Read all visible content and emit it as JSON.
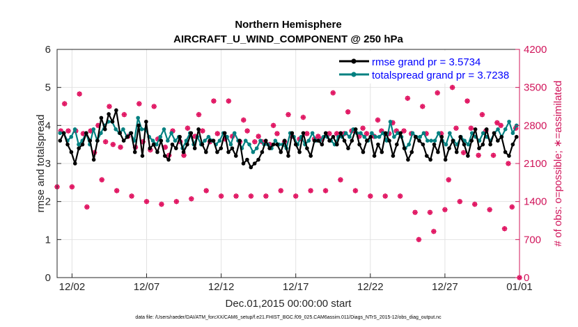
{
  "chart_data": {
    "type": "line",
    "title": "Northern Hemisphere",
    "subtitle": "AIRCRAFT_U_WIND_COMPONENT @ 250 hPa",
    "xlabel": "Dec.01,2015 00:00:00 start",
    "ylabel": "rmse and totalspread",
    "y2label": "# of obs: o=possible; ∗=assimilated",
    "footnote": "data file: /Users/raeder/DAI/ATM_forcXX/CAM6_setup/f.e21.FHIST_BGC.f09_025.CAM6assim.011/Diags_NTrS_2015-12/obs_diag_output.nc",
    "xlim": [
      0,
      31
    ],
    "ylim": [
      0,
      6
    ],
    "y2lim": [
      0,
      4200
    ],
    "x_ticks": [
      1,
      6,
      11,
      16,
      21,
      26,
      31
    ],
    "x_tick_labels": [
      "12/02",
      "12/07",
      "12/12",
      "12/17",
      "12/22",
      "12/27",
      "01/01"
    ],
    "y_ticks": [
      0,
      1,
      2,
      3,
      4,
      5,
      6
    ],
    "y2_ticks": [
      0,
      700,
      1400,
      2100,
      2800,
      3500,
      4200
    ],
    "legend_position": "top-right",
    "colors": {
      "rmse": "#000000",
      "spread": "#008080",
      "obs": "#e0115f",
      "y2axis": "#d0145a",
      "grid": "#e2e2e2",
      "legend_text": "#0000ff"
    },
    "series": [
      {
        "name": "rmse",
        "legend": "rmse grand pr = 3.5734",
        "values": [
          3.6,
          3.8,
          3.5,
          3.3,
          3.0,
          3.4,
          3.5,
          3.8,
          3.6,
          3.1,
          3.6,
          4.2,
          3.9,
          4.3,
          4.1,
          4.4,
          3.8,
          3.6,
          3.7,
          3.8,
          3.3,
          4.0,
          3.2,
          4.1,
          3.4,
          3.5,
          3.3,
          3.6,
          3.2,
          3.1,
          3.5,
          3.4,
          3.7,
          3.3,
          3.5,
          3.8,
          3.4,
          3.9,
          3.5,
          3.3,
          3.6,
          3.6,
          3.3,
          3.4,
          3.8,
          3.3,
          3.4,
          3.2,
          3.6,
          3.0,
          3.1,
          2.9,
          3.0,
          3.1,
          3.3,
          3.6,
          3.4,
          3.5,
          3.5,
          3.3,
          3.6,
          3.2,
          3.8,
          3.5,
          3.3,
          3.8,
          3.4,
          3.2,
          3.6,
          3.6,
          3.5,
          3.8,
          3.6,
          3.7,
          3.5,
          3.8,
          3.6,
          3.4,
          3.6,
          3.9,
          3.5,
          3.3,
          3.6,
          3.7,
          3.2,
          3.5,
          3.3,
          3.8,
          3.6,
          3.2,
          3.5,
          3.8,
          3.4,
          3.1,
          3.3,
          3.7,
          3.6,
          3.5,
          3.2,
          3.1,
          3.5,
          3.3,
          3.7,
          3.1,
          3.4,
          3.6,
          3.3,
          3.7,
          3.5,
          3.2,
          3.6,
          3.9,
          3.4,
          3.5,
          3.9,
          3.5,
          3.8,
          3.6,
          3.7,
          3.3,
          3.2,
          3.5,
          3.7
        ]
      },
      {
        "name": "totalspread",
        "legend": "totalspread grand pr = 3.7238",
        "values": [
          3.8,
          3.8,
          3.6,
          3.7,
          3.9,
          3.5,
          3.6,
          3.8,
          3.5,
          3.9,
          3.6,
          3.8,
          4.0,
          4.1,
          4.1,
          3.9,
          3.8,
          3.9,
          3.7,
          3.8,
          3.6,
          4.2,
          3.9,
          3.9,
          3.7,
          3.6,
          3.5,
          3.7,
          3.9,
          3.6,
          3.8,
          3.6,
          3.7,
          3.4,
          3.6,
          3.8,
          3.5,
          3.7,
          3.5,
          3.6,
          3.7,
          3.6,
          3.5,
          3.6,
          3.8,
          3.7,
          3.5,
          3.8,
          3.6,
          3.4,
          3.6,
          3.5,
          3.3,
          3.4,
          3.6,
          3.5,
          3.5,
          3.4,
          3.6,
          3.5,
          3.5,
          3.4,
          3.8,
          3.7,
          3.5,
          3.7,
          3.5,
          3.6,
          3.8,
          3.6,
          3.6,
          3.7,
          3.7,
          3.6,
          3.5,
          3.7,
          3.7,
          3.8,
          3.7,
          3.9,
          3.8,
          3.8,
          3.7,
          3.6,
          3.8,
          3.7,
          3.7,
          3.8,
          3.6,
          4.1,
          3.7,
          3.8,
          3.7,
          3.4,
          3.5,
          3.8,
          3.7,
          3.7,
          3.8,
          3.6,
          3.6,
          3.6,
          3.8,
          3.6,
          3.5,
          3.8,
          3.6,
          3.5,
          3.7,
          3.6,
          3.5,
          3.8,
          3.7,
          3.6,
          3.8,
          3.7,
          3.6,
          3.8,
          3.9,
          3.7,
          3.9,
          4.1,
          3.8,
          4.0
        ]
      }
    ],
    "obs": {
      "possible_label": "o=possible",
      "assimilated_label": "∗=assimilated",
      "x": [
        0,
        0.25,
        0.5,
        0.75,
        1,
        1.25,
        1.5,
        1.75,
        2,
        2.25,
        2.5,
        2.75,
        3,
        3.25,
        3.5,
        3.75,
        4,
        4.25,
        4.5,
        4.75,
        5,
        5.25,
        5.5,
        5.75,
        6,
        6.25,
        6.5,
        6.75,
        7,
        7.25,
        7.5,
        7.75,
        8,
        8.25,
        8.5,
        8.75,
        9,
        9.25,
        9.5,
        9.75,
        10,
        10.25,
        10.5,
        10.75,
        11,
        11.25,
        11.5,
        11.75,
        12,
        12.25,
        12.5,
        12.75,
        13,
        13.25,
        13.5,
        13.75,
        14,
        14.25,
        14.5,
        14.75,
        15,
        15.25,
        15.5,
        15.75,
        16,
        16.25,
        16.5,
        16.75,
        17,
        17.25,
        17.5,
        17.75,
        18,
        18.25,
        18.5,
        18.75,
        19,
        19.25,
        19.5,
        19.75,
        20,
        20.25,
        20.5,
        20.75,
        21,
        21.25,
        21.5,
        21.75,
        22,
        22.25,
        22.5,
        22.75,
        23,
        23.25,
        23.5,
        23.75,
        24,
        24.25,
        24.5,
        24.75,
        25,
        25.25,
        25.5,
        25.75,
        26,
        26.25,
        26.5,
        26.75,
        27,
        27.25,
        27.5,
        27.75,
        28,
        28.25,
        28.5,
        28.75,
        29,
        29.25,
        29.5,
        29.75,
        30,
        30.25,
        30.5,
        30.75,
        31
      ],
      "possible": [
        1670,
        2700,
        3200,
        2700,
        1670,
        2700,
        3380,
        2650,
        1300,
        2700,
        2300,
        2800,
        1800,
        2500,
        3150,
        2450,
        1600,
        2400,
        3000,
        2600,
        1500,
        2400,
        3200,
        2500,
        1400,
        2350,
        3150,
        2550,
        1350,
        2400,
        2250,
        2700,
        1400,
        2500,
        2250,
        2750,
        1450,
        2600,
        3000,
        2700,
        1600,
        2500,
        3250,
        2650,
        1500,
        2550,
        3250,
        2600,
        1500,
        2500,
        2900,
        2700,
        1500,
        2500,
        2600,
        2500,
        1500,
        2450,
        2800,
        2650,
        1600,
        2500,
        3000,
        2600,
        1500,
        2550,
        2950,
        2650,
        1600,
        2550,
        2600,
        2550,
        1600,
        2650,
        3400,
        2650,
        1800,
        2650,
        3050,
        2700,
        1600,
        2600,
        2750,
        2650,
        1500,
        2600,
        2900,
        2700,
        1500,
        2650,
        2850,
        2700,
        1500,
        2700,
        3300,
        2650,
        1200,
        700,
        3150,
        2650,
        1200,
        850,
        3400,
        2650,
        1250,
        1800,
        3500,
        2750,
        1400,
        2300,
        3250,
        2750,
        1350,
        2250,
        3000,
        2700,
        1250,
        2250,
        2850,
        2800,
        900,
        2100,
        1300,
        2750,
        0
      ],
      "assimilated": [
        1670,
        2700,
        3200,
        2700,
        1670,
        2700,
        3380,
        2650,
        1300,
        2700,
        2300,
        2800,
        1800,
        2500,
        3150,
        2450,
        1600,
        2400,
        3000,
        2600,
        1500,
        2400,
        3200,
        2500,
        1400,
        2350,
        3150,
        2550,
        1350,
        2400,
        2250,
        2700,
        1400,
        2500,
        2250,
        2750,
        1450,
        2600,
        3000,
        2700,
        1600,
        2500,
        3250,
        2650,
        1500,
        2550,
        3250,
        2600,
        1500,
        2500,
        2900,
        2700,
        1500,
        2500,
        2600,
        2500,
        1500,
        2450,
        2800,
        2650,
        1600,
        2500,
        3000,
        2600,
        1500,
        2550,
        2950,
        2650,
        1600,
        2550,
        2600,
        2550,
        1600,
        2650,
        3400,
        2650,
        1800,
        2650,
        3050,
        2700,
        1600,
        2600,
        2750,
        2650,
        1500,
        2600,
        2900,
        2700,
        1500,
        2650,
        2850,
        2700,
        1500,
        2700,
        3300,
        2650,
        1200,
        700,
        3150,
        2650,
        1200,
        850,
        3400,
        2650,
        1250,
        1800,
        3500,
        2750,
        1400,
        2300,
        3250,
        2750,
        1350,
        2250,
        3000,
        2700,
        1250,
        2250,
        2850,
        2800,
        900,
        2100,
        1300,
        2750,
        0
      ]
    }
  }
}
